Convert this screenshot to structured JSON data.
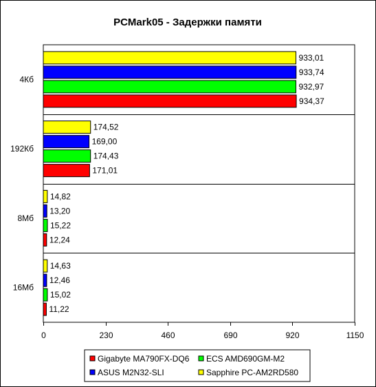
{
  "chart_data": {
    "type": "bar",
    "orientation": "horizontal",
    "title": "PCMark05 - Задержки памяти",
    "categories": [
      "4Кб",
      "192Кб",
      "8Мб",
      "16Мб"
    ],
    "series": [
      {
        "name": "Sapphire PC-AM2RD580",
        "color": "#FFFF00",
        "values": [
          933.01,
          174.52,
          14.82,
          14.63
        ],
        "labels": [
          "933,01",
          "174,52",
          "14,82",
          "14,63"
        ]
      },
      {
        "name": "ASUS M2N32-SLI",
        "color": "#0000FF",
        "values": [
          933.74,
          169.0,
          13.2,
          12.46
        ],
        "labels": [
          "933,74",
          "169,00",
          "13,20",
          "12,46"
        ]
      },
      {
        "name": "ECS AMD690GM-M2",
        "color": "#00FF00",
        "values": [
          932.97,
          174.43,
          15.22,
          15.02
        ],
        "labels": [
          "932,97",
          "174,43",
          "15,22",
          "15,02"
        ]
      },
      {
        "name": "Gigabyte MA790FX-DQ6",
        "color": "#FF0000",
        "values": [
          934.37,
          171.01,
          12.24,
          11.22
        ],
        "labels": [
          "934,37",
          "171,01",
          "12,24",
          "11,22"
        ]
      }
    ],
    "xlim": [
      0,
      1150
    ],
    "xticks": [
      0,
      230,
      460,
      690,
      920,
      1150
    ],
    "legend": {
      "position": "bottom",
      "order": [
        "Gigabyte MA790FX-DQ6",
        "ECS AMD690GM-M2",
        "ASUS M2N32-SLI",
        "Sapphire PC-AM2RD580"
      ]
    },
    "grid": false
  }
}
